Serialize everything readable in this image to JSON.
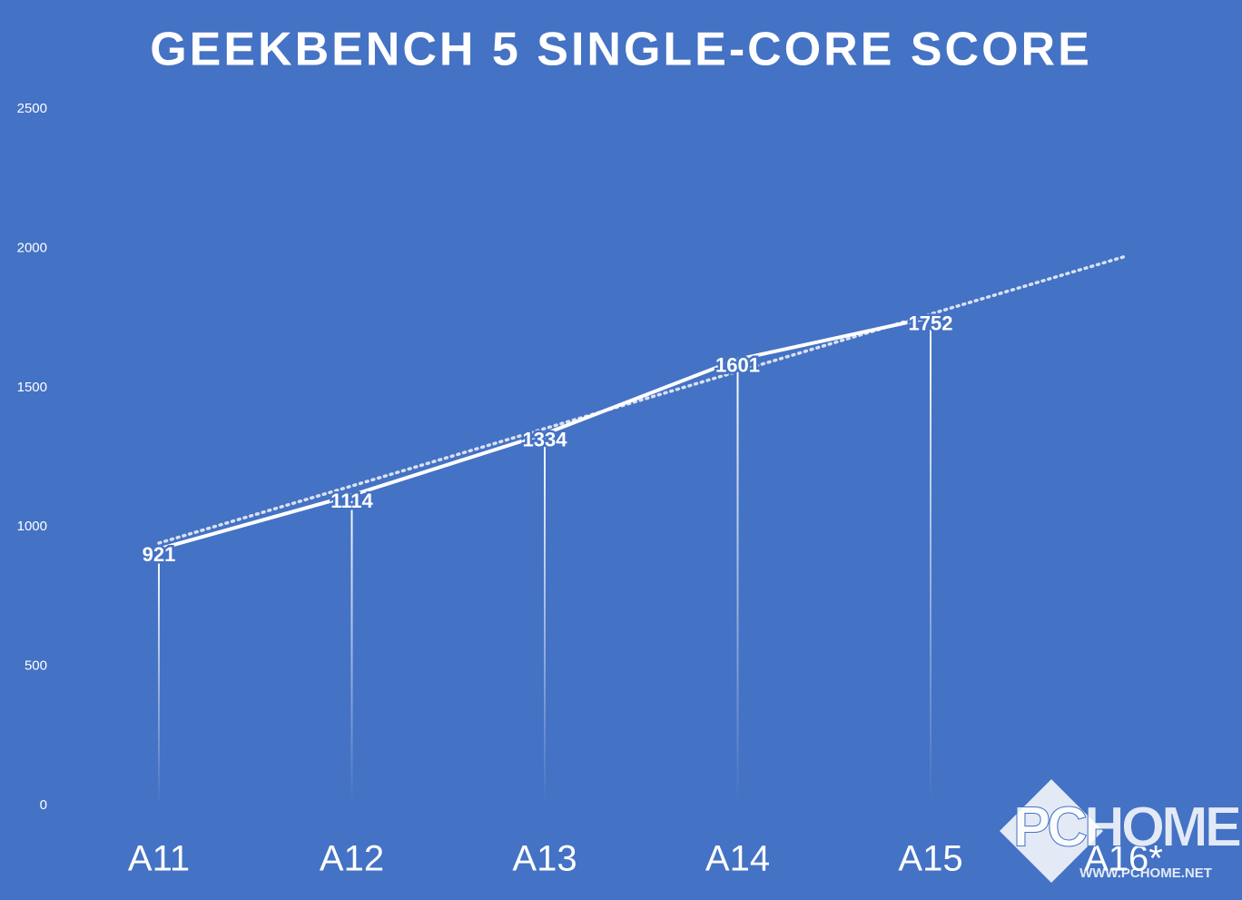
{
  "chart_data": {
    "type": "line",
    "title": "GEEKBENCH 5 SINGLE-CORE SCORE",
    "categories": [
      "A11",
      "A12",
      "A13",
      "A14",
      "A15",
      "A16*"
    ],
    "series": [
      {
        "color": "#ffffff",
        "values": [
          921,
          1114,
          1334,
          1601,
          1752,
          null
        ]
      }
    ],
    "trendline": {
      "style": "dotted",
      "color": "#d9e1f2",
      "values": [
        942,
        1147,
        1353,
        1558,
        1764,
        1969
      ]
    },
    "ylim": [
      0,
      2500
    ],
    "yticks": [
      0,
      500,
      1000,
      1500,
      2000,
      2500
    ],
    "drop_lines": true,
    "background": "#4472c4",
    "watermark": {
      "logo": "PCHOME",
      "url": "WWW.PCHOME.NET"
    }
  }
}
